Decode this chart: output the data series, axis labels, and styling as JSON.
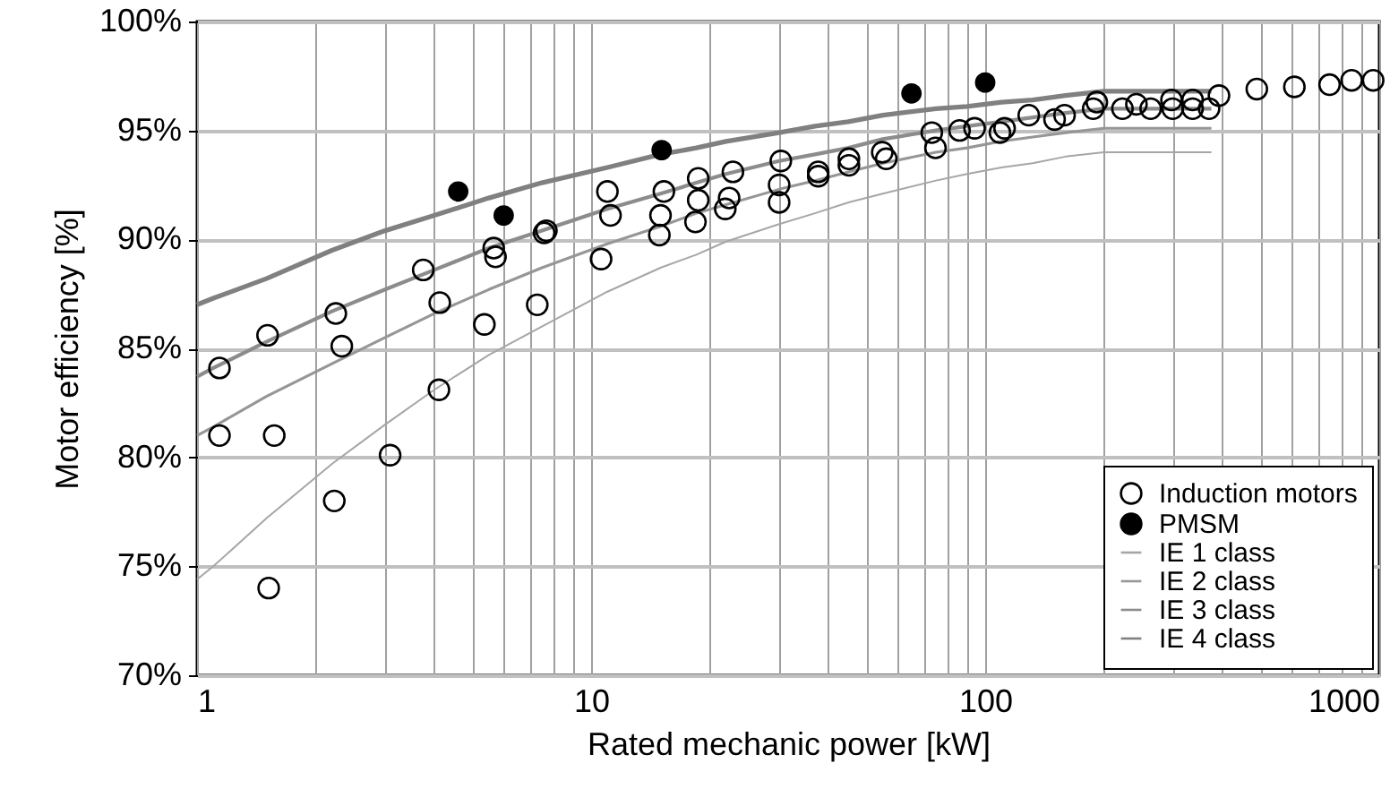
{
  "chart_data": {
    "type": "scatter",
    "xlabel": "Rated mechanic power [kW]",
    "ylabel": "Motor efficiency [%]",
    "log": "x",
    "grid": true,
    "legend": "bottom right",
    "xlim": [
      1,
      1000
    ],
    "xticks": [
      1,
      10,
      100,
      1000
    ],
    "ylim": [
      70,
      100
    ],
    "yticks": [
      {
        "value": 70,
        "label": "70%"
      },
      {
        "value": 75,
        "label": "75%"
      },
      {
        "value": 80,
        "label": "80%"
      },
      {
        "value": 85,
        "label": "85%"
      },
      {
        "value": 90,
        "label": "90%"
      },
      {
        "value": 95,
        "label": "95%"
      },
      {
        "value": 100,
        "label": "100%"
      }
    ],
    "series": [
      {
        "name": "Induction motors",
        "marker": "circle",
        "color": "#000000",
        "x": [
          1.14,
          1.51,
          2.25,
          2.33,
          3.75,
          4.13,
          5.36,
          5.66,
          5.72,
          7.3,
          7.6,
          7.7,
          10.6,
          11.2,
          1.14,
          1.57,
          4.11,
          3.09,
          2.23,
          1.52,
          11.0,
          15.3,
          15.0,
          14.9,
          18.7,
          18.7,
          18.4,
          22.9,
          22.4,
          21.9,
          30.3,
          30.0,
          30.0,
          37.7,
          37.7,
          45.1,
          45.1,
          54.8,
          56.1,
          73.2,
          74.8,
          86.1,
          94.0,
          109,
          112,
          129,
          150,
          159,
          188,
          192,
          223,
          242,
          263,
          297,
          299,
          336,
          336,
          370,
          392,
          489,
          609,
          748,
          851,
          965
        ],
        "values": [
          84.1,
          85.6,
          86.6,
          85.1,
          88.6,
          87.1,
          86.1,
          89.6,
          89.2,
          87.0,
          90.3,
          90.4,
          89.1,
          91.1,
          81.0,
          81.0,
          83.1,
          80.1,
          78.0,
          74.0,
          92.2,
          92.2,
          91.1,
          90.2,
          92.8,
          91.8,
          90.8,
          93.1,
          91.9,
          91.4,
          93.6,
          92.5,
          91.7,
          93.1,
          92.9,
          93.7,
          93.4,
          94.0,
          93.7,
          94.9,
          94.2,
          95.0,
          95.1,
          94.9,
          95.1,
          95.7,
          95.5,
          95.7,
          96.0,
          96.3,
          96.0,
          96.2,
          96.0,
          96.4,
          96.0,
          96.4,
          96.0,
          96.0,
          96.6,
          96.9,
          97.0,
          97.1,
          97.3,
          97.3
        ]
      },
      {
        "name": "PMSM",
        "marker": "circle",
        "color": "#000000",
        "x": [
          4.6,
          6.0,
          15.1,
          65,
          100
        ],
        "values": [
          92.2,
          91.1,
          94.1,
          96.7,
          97.2
        ]
      },
      {
        "name": "IE 1 class",
        "type": "line",
        "marker": "none",
        "color": "#a6a6a6",
        "x": [
          1,
          1.1,
          1.5,
          2.2,
          3,
          4,
          5.5,
          7.5,
          11,
          15,
          18.5,
          22,
          30,
          37,
          45,
          55,
          75,
          90,
          110,
          132,
          160,
          200,
          375
        ],
        "values": [
          74.4,
          75.0,
          77.2,
          79.7,
          81.5,
          83.1,
          84.7,
          86.0,
          87.6,
          88.7,
          89.3,
          89.9,
          90.7,
          91.2,
          91.7,
          92.1,
          92.7,
          93.0,
          93.3,
          93.5,
          93.8,
          94.0,
          94.0
        ]
      },
      {
        "name": "IE 2 class",
        "type": "line",
        "marker": "none",
        "color": "#969696",
        "x": [
          1,
          1.1,
          1.5,
          2.2,
          3,
          4,
          5.5,
          7.5,
          11,
          15,
          18.5,
          22,
          30,
          37,
          45,
          55,
          75,
          90,
          110,
          132,
          160,
          200,
          375
        ],
        "values": [
          81.0,
          81.4,
          82.8,
          84.3,
          85.5,
          86.6,
          87.7,
          88.7,
          89.8,
          90.6,
          91.2,
          91.6,
          92.3,
          92.7,
          93.1,
          93.5,
          94.0,
          94.2,
          94.5,
          94.7,
          94.9,
          95.1,
          95.1
        ]
      },
      {
        "name": "IE 3 class",
        "type": "line",
        "marker": "none",
        "color": "#8c8c8c",
        "x": [
          1,
          1.1,
          1.5,
          2.2,
          3,
          4,
          5.5,
          7.5,
          11,
          15,
          18.5,
          22,
          30,
          37,
          45,
          55,
          75,
          90,
          110,
          132,
          160,
          200,
          375
        ],
        "values": [
          83.7,
          84.1,
          85.3,
          86.7,
          87.7,
          88.6,
          89.6,
          90.4,
          91.4,
          92.1,
          92.6,
          93.0,
          93.6,
          93.9,
          94.2,
          94.6,
          95.0,
          95.2,
          95.4,
          95.6,
          95.8,
          96.0,
          96.0
        ]
      },
      {
        "name": "IE 4 class",
        "type": "line",
        "marker": "none",
        "color": "#808080",
        "x": [
          1,
          1.1,
          1.5,
          2.2,
          3,
          4,
          5.5,
          7.5,
          11,
          15,
          18.5,
          22,
          30,
          37,
          45,
          55,
          75,
          90,
          110,
          132,
          160,
          200,
          375
        ],
        "values": [
          87.0,
          87.3,
          88.2,
          89.5,
          90.4,
          91.1,
          91.9,
          92.6,
          93.3,
          93.9,
          94.2,
          94.5,
          94.9,
          95.2,
          95.4,
          95.7,
          96.0,
          96.1,
          96.3,
          96.4,
          96.6,
          96.8,
          96.8
        ]
      }
    ]
  }
}
